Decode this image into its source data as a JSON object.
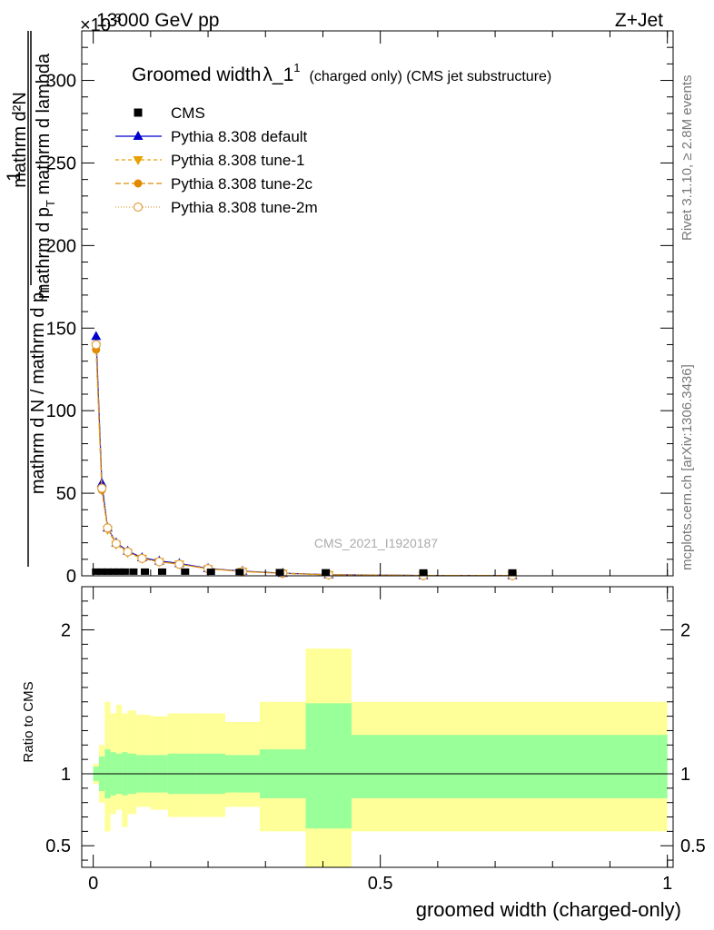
{
  "header": {
    "left": "13000 GeV pp",
    "right": "Z+Jet",
    "exponent": "×10",
    "exponent_sup": "-3"
  },
  "title": {
    "main": "Groomed width",
    "lambda": "λ_1",
    "sup": "1",
    "sub": "(charged only) (CMS jet substructure)"
  },
  "watermark": "CMS_2021_I1920187",
  "side_text": {
    "rivet": "Rivet 3.1.10, ≥ 2.8M events",
    "mcplots": "mcplots.cern.ch [arXiv:1306.3436]"
  },
  "ylabel_top": {
    "numer_one": "1",
    "denom_one": "mathrm d N / mathrm d p",
    "numer": "mathrm d²N",
    "denom": "mathrm d p",
    "denom_sub": "T",
    "denom_tail": " mathrm d lambda"
  },
  "ratio_ylabel": "Ratio to CMS",
  "xlabel": "groomed width (charged-only)",
  "legend": [
    {
      "label": "CMS",
      "color": "#000000",
      "marker": "square",
      "dash": ""
    },
    {
      "label": "Pythia 8.308 default",
      "color": "#0000cc",
      "marker": "triangle-up",
      "dash": ""
    },
    {
      "label": "Pythia 8.308 tune-1",
      "color": "#e8a000",
      "marker": "triangle-down",
      "dash": "4,3"
    },
    {
      "label": "Pythia 8.308 tune-2c",
      "color": "#e08a00",
      "marker": "circle",
      "dash": "6,3"
    },
    {
      "label": "Pythia 8.308 tune-2m",
      "color": "#e0a040",
      "marker": "circle-open",
      "dash": "1,2"
    }
  ],
  "chart_data": [
    {
      "type": "line",
      "xlim": [
        -0.02,
        1.01
      ],
      "ylim": [
        0,
        330
      ],
      "yticks": [
        0,
        50,
        100,
        150,
        200,
        250,
        300
      ],
      "ytick_labels": [
        "0",
        "50",
        "100",
        "150",
        "200",
        "250",
        "300"
      ],
      "xticks": [
        0,
        0.5,
        1
      ],
      "xtick_labels": [
        "0",
        "0.5",
        "1"
      ],
      "cms_x": [
        0.005,
        0.015,
        0.025,
        0.035,
        0.045,
        0.055,
        0.07,
        0.09,
        0.12,
        0.16,
        0.205,
        0.255,
        0.325,
        0.405,
        0.575,
        0.73
      ],
      "cms_y": [
        0.6,
        0.6,
        0.6,
        0.6,
        0.6,
        0.6,
        0.6,
        0.6,
        0.6,
        0.6,
        0.5,
        0.4,
        0.3,
        0.2,
        0.1,
        0.1
      ],
      "series": [
        {
          "name": "Pythia 8.308 default",
          "x": [
            0.005,
            0.015,
            0.025,
            0.04,
            0.06,
            0.085,
            0.115,
            0.15,
            0.2,
            0.26,
            0.33,
            0.41,
            0.575,
            0.73
          ],
          "y": [
            145,
            56,
            29,
            20,
            15,
            11,
            9,
            7.5,
            4.5,
            2.8,
            1.6,
            0.7,
            0.2,
            0.2
          ]
        },
        {
          "name": "Pythia 8.308 tune-1",
          "x": [
            0.005,
            0.015,
            0.025,
            0.04,
            0.06,
            0.085,
            0.115,
            0.15,
            0.2,
            0.26,
            0.33,
            0.41,
            0.575,
            0.73
          ],
          "y": [
            139,
            52,
            28,
            19,
            14,
            10.5,
            8.5,
            7,
            4.2,
            2.6,
            1.5,
            0.6,
            0.2,
            0.2
          ]
        },
        {
          "name": "Pythia 8.308 tune-2c",
          "x": [
            0.005,
            0.015,
            0.025,
            0.04,
            0.06,
            0.085,
            0.115,
            0.15,
            0.2,
            0.26,
            0.33,
            0.41,
            0.575,
            0.73
          ],
          "y": [
            137,
            52,
            29,
            19.5,
            14.5,
            10.5,
            8.5,
            7,
            4.3,
            2.6,
            1.5,
            0.6,
            0.2,
            0.2
          ]
        },
        {
          "name": "Pythia 8.308 tune-2m",
          "x": [
            0.005,
            0.015,
            0.025,
            0.04,
            0.06,
            0.085,
            0.115,
            0.15,
            0.2,
            0.26,
            0.33,
            0.41,
            0.575,
            0.73
          ],
          "y": [
            140,
            53,
            29,
            19.5,
            14.5,
            10.5,
            8.5,
            7,
            4.3,
            2.6,
            1.5,
            0.6,
            0.2,
            0.2
          ]
        }
      ]
    },
    {
      "type": "area",
      "ylim": [
        0.35,
        2.3
      ],
      "yticks": [
        0.5,
        1,
        2
      ],
      "ytick_labels": [
        "0.5",
        "1",
        "2"
      ],
      "reference_line": 1,
      "bands": [
        {
          "x0": 0,
          "x1": 0.01,
          "stat": [
            0.95,
            1.05
          ],
          "total": [
            0.93,
            1.07
          ]
        },
        {
          "x0": 0.01,
          "x1": 0.02,
          "stat": [
            0.88,
            1.12
          ],
          "total": [
            0.8,
            1.2
          ]
        },
        {
          "x0": 0.02,
          "x1": 0.03,
          "stat": [
            0.83,
            1.17
          ],
          "total": [
            0.6,
            1.5
          ]
        },
        {
          "x0": 0.03,
          "x1": 0.04,
          "stat": [
            0.85,
            1.15
          ],
          "total": [
            0.72,
            1.42
          ]
        },
        {
          "x0": 0.04,
          "x1": 0.05,
          "stat": [
            0.86,
            1.14
          ],
          "total": [
            0.75,
            1.48
          ]
        },
        {
          "x0": 0.05,
          "x1": 0.06,
          "stat": [
            0.85,
            1.15
          ],
          "total": [
            0.63,
            1.42
          ]
        },
        {
          "x0": 0.06,
          "x1": 0.075,
          "stat": [
            0.86,
            1.14
          ],
          "total": [
            0.72,
            1.44
          ]
        },
        {
          "x0": 0.075,
          "x1": 0.1,
          "stat": [
            0.87,
            1.13
          ],
          "total": [
            0.77,
            1.41
          ]
        },
        {
          "x0": 0.1,
          "x1": 0.13,
          "stat": [
            0.87,
            1.13
          ],
          "total": [
            0.75,
            1.4
          ]
        },
        {
          "x0": 0.13,
          "x1": 0.18,
          "stat": [
            0.86,
            1.14
          ],
          "total": [
            0.7,
            1.42
          ]
        },
        {
          "x0": 0.18,
          "x1": 0.23,
          "stat": [
            0.86,
            1.14
          ],
          "total": [
            0.7,
            1.42
          ]
        },
        {
          "x0": 0.23,
          "x1": 0.29,
          "stat": [
            0.87,
            1.13
          ],
          "total": [
            0.77,
            1.36
          ]
        },
        {
          "x0": 0.29,
          "x1": 0.37,
          "stat": [
            0.83,
            1.17
          ],
          "total": [
            0.6,
            1.5
          ]
        },
        {
          "x0": 0.37,
          "x1": 0.45,
          "stat": [
            0.62,
            1.49
          ],
          "total": [
            0.35,
            1.87
          ]
        },
        {
          "x0": 0.45,
          "x1": 1.0,
          "stat": [
            0.83,
            1.27
          ],
          "total": [
            0.6,
            1.5
          ]
        }
      ]
    }
  ],
  "colors": {
    "stat_band": "#99ff99",
    "total_band": "#ffff99"
  }
}
